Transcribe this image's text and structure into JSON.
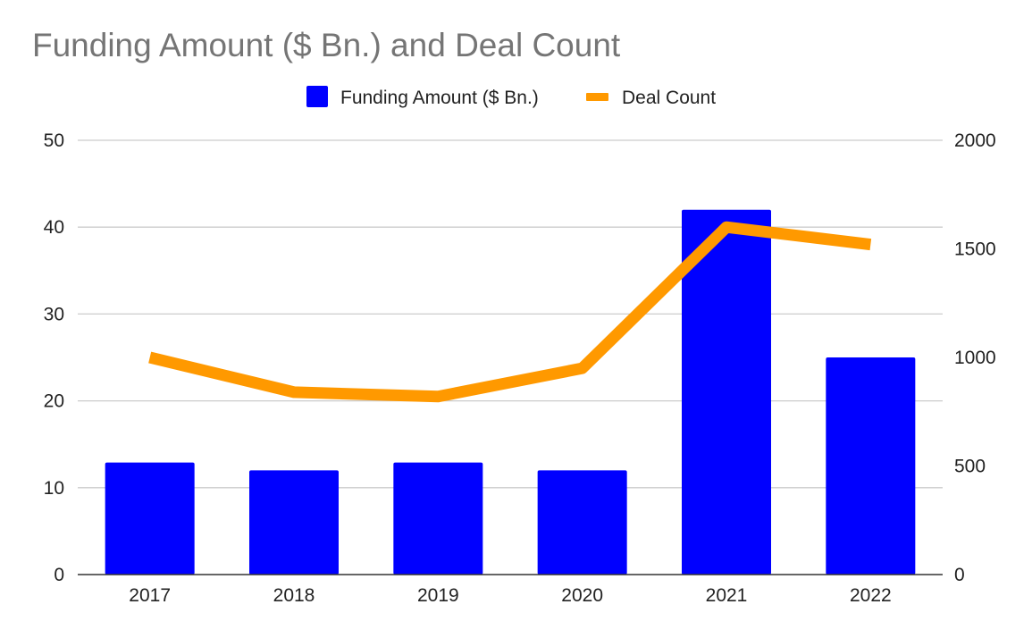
{
  "chart_data": {
    "type": "bar",
    "title": "Funding Amount ($ Bn.) and Deal Count",
    "categories": [
      "2017",
      "2018",
      "2019",
      "2020",
      "2021",
      "2022"
    ],
    "series": [
      {
        "name": "Funding Amount ($ Bn.)",
        "type": "bar",
        "axis": "left",
        "color": "#0000FF",
        "values": [
          12.9,
          12,
          12.9,
          12,
          42,
          25
        ]
      },
      {
        "name": "Deal Count",
        "type": "line",
        "axis": "right",
        "color": "#FF9900",
        "values": [
          1000,
          840,
          820,
          950,
          1600,
          1520
        ]
      }
    ],
    "y_left": {
      "ylim": [
        0,
        50
      ],
      "ticks": [
        "0",
        "10",
        "20",
        "30",
        "40",
        "50"
      ]
    },
    "y_right": {
      "ylim": [
        0,
        2000
      ],
      "ticks": [
        "0",
        "500",
        "1000",
        "1500",
        "2000"
      ]
    },
    "grid": true,
    "legend_position": "top-center",
    "gridline_color": "#CCCCCC",
    "axis_color": "#333333"
  }
}
